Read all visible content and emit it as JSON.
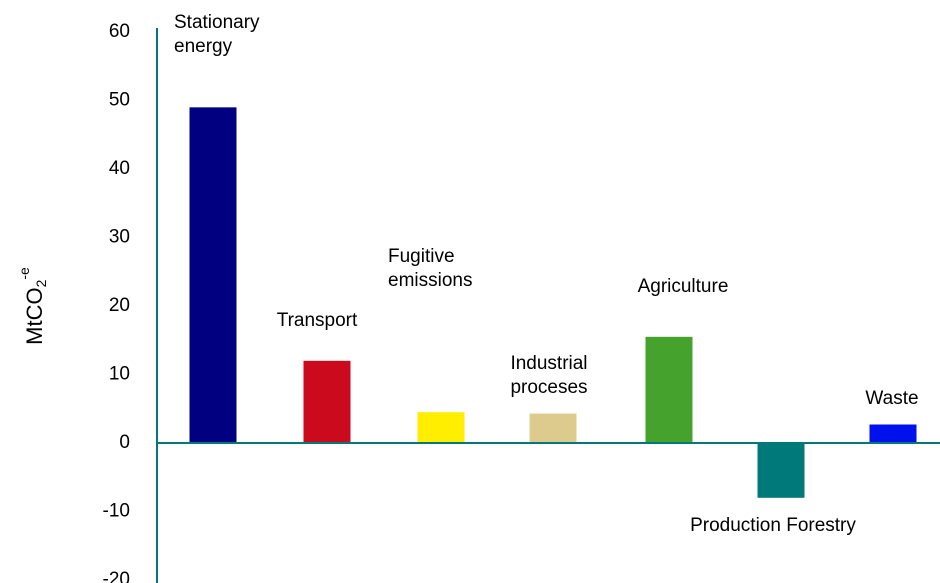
{
  "chart_data": {
    "type": "bar",
    "title": "",
    "xlabel": "",
    "ylabel": "MtCO",
    "ylabel_sub": "2",
    "ylabel_sup": "-e",
    "ylim": [
      -20,
      60
    ],
    "yticks": [
      60,
      50,
      40,
      30,
      20,
      10,
      0,
      -10,
      -20
    ],
    "grid": false,
    "legend": "none",
    "categories": [
      [
        "Stationary",
        "energy"
      ],
      [
        "Transport"
      ],
      [
        "Fugitive",
        "emissions"
      ],
      [
        "Industrial",
        "proceses"
      ],
      [
        "Agriculture"
      ],
      [
        "Production Forestry"
      ],
      [
        "Waste"
      ]
    ],
    "values": [
      49,
      12,
      4.5,
      4.3,
      15.5,
      -8,
      2.7
    ],
    "colors": [
      "#000080",
      "#CC0A1E",
      "#FFEE00",
      "#DCCB8C",
      "#45A22D",
      "#00797B",
      "#0011EE"
    ],
    "axis_color": "#00797B"
  }
}
